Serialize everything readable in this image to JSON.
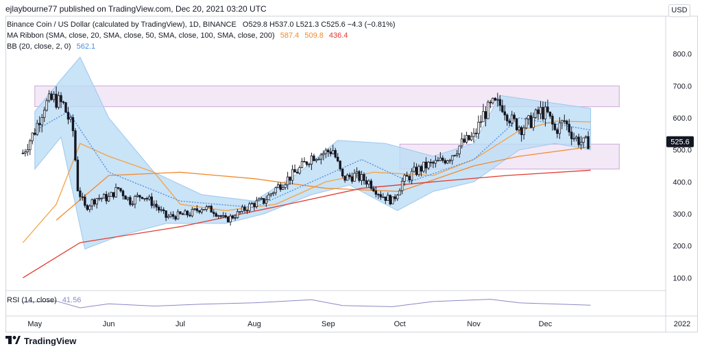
{
  "header": {
    "attribution": "ejlaybourne77 published on TradingView.com, Dec 20, 2021 03:20 UTC"
  },
  "legend": {
    "title": "Binance Coin / US Dollar (calculated by TradingView), 1D, BINANCE",
    "ohlc": "O529.8  H537.0  L521.3  C525.6  −4.3 (−0.81%)",
    "ma_label": "MA Ribbon (SMA, close, 20, SMA, close, 50, SMA, close, 100, SMA, close, 200)",
    "ma_values": [
      "587.4",
      "509.8",
      "436.4"
    ],
    "bb_label": "BB (20, close, 2, 0)",
    "bb_value": "562.1",
    "rsi_label": "RSI (14, close)",
    "rsi_value": "41.56"
  },
  "currency_button": "USD",
  "price_label": "525.6",
  "footer": {
    "brand": "TradingView"
  },
  "colors": {
    "up": "#131722",
    "down": "#131722",
    "bb_fill": "#bcdcf5",
    "bb_basis": "#4a8be0",
    "sma50": "#f5a142",
    "sma100": "#f08a2c",
    "sma200": "#e0392c",
    "zone": "#e9d5ee",
    "rsi": "#8a86c6",
    "price_label_bg": "#131722"
  },
  "chart_data": {
    "type": "candlestick",
    "symbol": "BNBUSD",
    "interval": "1D",
    "ylim": [
      60,
      900
    ],
    "y_ticks": [
      "800.0",
      "700.0",
      "600.0",
      "500.0",
      "400.0",
      "300.0",
      "200.0",
      "100.0"
    ],
    "y_tick_values": [
      800,
      700,
      600,
      500,
      400,
      300,
      200,
      100
    ],
    "x_labels": [
      "May",
      "Jun",
      "Jul",
      "Aug",
      "Sep",
      "Oct",
      "Nov",
      "Dec",
      "2022"
    ],
    "zones": [
      {
        "x_start": "2021-05-01",
        "x_end": "2022-01-01",
        "y_low": 635,
        "y_high": 700
      },
      {
        "x_start": "2021-10-01",
        "x_end": "2022-01-01",
        "y_low": 440,
        "y_high": 518
      }
    ],
    "close_series": [
      [
        "2021-04-26",
        490
      ],
      [
        "2021-05-01",
        560
      ],
      [
        "2021-05-05",
        640
      ],
      [
        "2021-05-09",
        660
      ],
      [
        "2021-05-13",
        640
      ],
      [
        "2021-05-17",
        560
      ],
      [
        "2021-05-19",
        380
      ],
      [
        "2021-05-22",
        320
      ],
      [
        "2021-05-27",
        350
      ],
      [
        "2021-06-01",
        350
      ],
      [
        "2021-06-05",
        380
      ],
      [
        "2021-06-10",
        340
      ],
      [
        "2021-06-15",
        360
      ],
      [
        "2021-06-20",
        330
      ],
      [
        "2021-06-25",
        290
      ],
      [
        "2021-06-30",
        295
      ],
      [
        "2021-07-05",
        300
      ],
      [
        "2021-07-10",
        320
      ],
      [
        "2021-07-15",
        310
      ],
      [
        "2021-07-20",
        280
      ],
      [
        "2021-07-25",
        300
      ],
      [
        "2021-07-31",
        330
      ],
      [
        "2021-08-05",
        340
      ],
      [
        "2021-08-10",
        380
      ],
      [
        "2021-08-15",
        410
      ],
      [
        "2021-08-20",
        440
      ],
      [
        "2021-08-25",
        480
      ],
      [
        "2021-08-30",
        490
      ],
      [
        "2021-09-03",
        500
      ],
      [
        "2021-09-07",
        410
      ],
      [
        "2021-09-12",
        420
      ],
      [
        "2021-09-18",
        400
      ],
      [
        "2021-09-23",
        360
      ],
      [
        "2021-09-28",
        340
      ],
      [
        "2021-10-02",
        400
      ],
      [
        "2021-10-07",
        430
      ],
      [
        "2021-10-12",
        450
      ],
      [
        "2021-10-17",
        460
      ],
      [
        "2021-10-22",
        480
      ],
      [
        "2021-10-27",
        520
      ],
      [
        "2021-11-01",
        540
      ],
      [
        "2021-11-05",
        610
      ],
      [
        "2021-11-09",
        640
      ],
      [
        "2021-11-13",
        640
      ],
      [
        "2021-11-17",
        590
      ],
      [
        "2021-11-21",
        570
      ],
      [
        "2021-11-25",
        590
      ],
      [
        "2021-11-29",
        620
      ],
      [
        "2021-12-02",
        610
      ],
      [
        "2021-12-05",
        560
      ],
      [
        "2021-12-09",
        590
      ],
      [
        "2021-12-13",
        540
      ],
      [
        "2021-12-17",
        520
      ],
      [
        "2021-12-20",
        525.6
      ]
    ],
    "series": [
      {
        "name": "SMA 50",
        "color": "#f5a142",
        "values": [
          [
            "2021-04-26",
            210
          ],
          [
            "2021-05-10",
            330
          ],
          [
            "2021-05-20",
            520
          ],
          [
            "2021-06-01",
            480
          ],
          [
            "2021-06-20",
            430
          ],
          [
            "2021-07-01",
            330
          ],
          [
            "2021-07-20",
            310
          ],
          [
            "2021-08-10",
            330
          ],
          [
            "2021-08-31",
            400
          ],
          [
            "2021-09-20",
            430
          ],
          [
            "2021-10-15",
            420
          ],
          [
            "2021-11-01",
            470
          ],
          [
            "2021-11-20",
            560
          ],
          [
            "2021-12-05",
            590
          ],
          [
            "2021-12-20",
            587.4
          ]
        ]
      },
      {
        "name": "SMA 100",
        "color": "#f08a2c",
        "values": [
          [
            "2021-05-10",
            280
          ],
          [
            "2021-06-01",
            420
          ],
          [
            "2021-07-01",
            430
          ],
          [
            "2021-08-01",
            410
          ],
          [
            "2021-08-31",
            380
          ],
          [
            "2021-10-01",
            370
          ],
          [
            "2021-11-01",
            450
          ],
          [
            "2021-11-20",
            480
          ],
          [
            "2021-12-20",
            509.8
          ]
        ]
      },
      {
        "name": "SMA 200",
        "color": "#e0392c",
        "values": [
          [
            "2021-04-26",
            100
          ],
          [
            "2021-05-20",
            210
          ],
          [
            "2021-07-01",
            260
          ],
          [
            "2021-08-15",
            330
          ],
          [
            "2021-09-15",
            380
          ],
          [
            "2021-10-15",
            400
          ],
          [
            "2021-11-15",
            420
          ],
          [
            "2021-12-20",
            436.4
          ]
        ]
      },
      {
        "name": "BB basis",
        "color": "#4a8be0",
        "values": [
          [
            "2021-05-01",
            560
          ],
          [
            "2021-05-15",
            620
          ],
          [
            "2021-06-01",
            430
          ],
          [
            "2021-07-01",
            340
          ],
          [
            "2021-08-01",
            320
          ],
          [
            "2021-08-25",
            400
          ],
          [
            "2021-09-15",
            470
          ],
          [
            "2021-10-05",
            400
          ],
          [
            "2021-11-01",
            470
          ],
          [
            "2021-11-20",
            600
          ],
          [
            "2021-12-20",
            562.1
          ]
        ]
      }
    ],
    "bands": {
      "upper": [
        [
          "2021-05-01",
          620
        ],
        [
          "2021-05-12",
          720
        ],
        [
          "2021-05-20",
          790
        ],
        [
          "2021-06-01",
          600
        ],
        [
          "2021-06-20",
          430
        ],
        [
          "2021-07-10",
          360
        ],
        [
          "2021-08-01",
          340
        ],
        [
          "2021-08-20",
          430
        ],
        [
          "2021-09-05",
          530
        ],
        [
          "2021-09-25",
          520
        ],
        [
          "2021-10-15",
          480
        ],
        [
          "2021-11-01",
          520
        ],
        [
          "2021-11-12",
          670
        ],
        [
          "2021-12-01",
          650
        ],
        [
          "2021-12-20",
          630
        ]
      ],
      "lower": [
        [
          "2021-05-01",
          440
        ],
        [
          "2021-05-12",
          540
        ],
        [
          "2021-05-22",
          190
        ],
        [
          "2021-06-05",
          230
        ],
        [
          "2021-06-25",
          270
        ],
        [
          "2021-07-20",
          270
        ],
        [
          "2021-08-05",
          300
        ],
        [
          "2021-08-25",
          360
        ],
        [
          "2021-09-10",
          390
        ],
        [
          "2021-09-30",
          310
        ],
        [
          "2021-10-15",
          370
        ],
        [
          "2021-11-01",
          400
        ],
        [
          "2021-11-20",
          500
        ],
        [
          "2021-12-05",
          520
        ],
        [
          "2021-12-20",
          500
        ]
      ]
    },
    "rsi": {
      "name": "RSI (14, close)",
      "ylim": [
        0,
        100
      ],
      "values": [
        [
          "2021-04-26",
          55
        ],
        [
          "2021-05-10",
          60
        ],
        [
          "2021-05-20",
          30
        ],
        [
          "2021-06-01",
          48
        ],
        [
          "2021-06-20",
          38
        ],
        [
          "2021-07-10",
          46
        ],
        [
          "2021-08-01",
          52
        ],
        [
          "2021-08-25",
          66
        ],
        [
          "2021-09-07",
          40
        ],
        [
          "2021-09-28",
          35
        ],
        [
          "2021-10-15",
          58
        ],
        [
          "2021-11-08",
          68
        ],
        [
          "2021-11-20",
          52
        ],
        [
          "2021-12-05",
          47
        ],
        [
          "2021-12-20",
          41.56
        ]
      ]
    }
  }
}
